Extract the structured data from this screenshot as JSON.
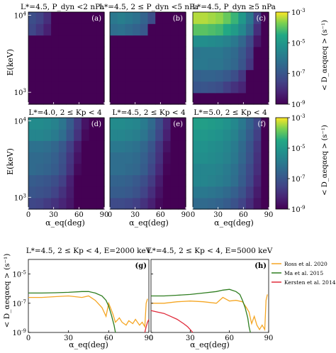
{
  "panel_titles": {
    "a": "L*=4.5, P_dyn <2 nPa",
    "b": "L*=4.5, 2 ≤ P_dyn <5 nPa",
    "c": "L*=4.5, P_dyn ≥5 nPa",
    "d": "L*=4.0, 2 ≤ Kp < 4",
    "e": "L*=4.5, 2 ≤ Kp < 4",
    "f": "L*=5.0, 2 ≤ Kp < 4",
    "g": "L*=4.5, 2 ≤ Kp < 4, E=2000 keV",
    "h": "L*=4.5, 2 ≤ Kp < 4, E=5000 keV"
  },
  "panel_tags": [
    "(a)",
    "(b)",
    "(c)",
    "(d)",
    "(e)",
    "(f)",
    "(g)",
    "(h)"
  ],
  "heatmap_ylabel": "E(keV)",
  "heatmap_yticks": [
    "10",
    "10"
  ],
  "heatmap_ytick_exps": [
    "4",
    "3"
  ],
  "heatmap_xlabel": "α_eq(deg)",
  "heatmap_xticks": [
    "0",
    "30",
    "60",
    "90"
  ],
  "colorbar_label": "< D_αeqαeq > (s⁻¹)",
  "colorbar_ticks": [
    "10",
    "10",
    "10",
    "10"
  ],
  "colorbar_tick_exps": [
    "-3",
    "-5",
    "-7",
    "-9"
  ],
  "line_ylabel": "< D_αeqαeq > (s⁻¹)",
  "line_xlabel": "α_eq(deg)",
  "line_xticks": [
    "0",
    "30",
    "60",
    "90"
  ],
  "line_yticks": [
    "10",
    "10",
    "10"
  ],
  "line_ytick_exps": [
    "-5",
    "-7",
    "-9"
  ],
  "legend": [
    "Ross et al. 2020",
    "Ma et al. 2015",
    "Kersten et al. 2014"
  ],
  "colors": {
    "ross": "#f5a623",
    "ma": "#2e7d1f",
    "kersten": "#e02a3a"
  },
  "chart_data": [
    {
      "type": "heatmap",
      "panel": "a",
      "x_range_deg": [
        0,
        90
      ],
      "y_range_keV": [
        700,
        11000
      ],
      "log10_D_range": [
        -9,
        -3
      ],
      "rows_keV_low_to_high": [
        "low",
        "",
        "",
        "",
        "",
        "",
        "",
        "high"
      ],
      "log10_D": [
        [
          -9,
          -9,
          -9,
          -9,
          -9,
          -9,
          -9,
          -9,
          -9,
          -9
        ],
        [
          -9,
          -9,
          -9,
          -9,
          -9,
          -9,
          -9,
          -9,
          -9,
          -9
        ],
        [
          -9,
          -9,
          -9,
          -9,
          -9,
          -9,
          -9,
          -9,
          -9,
          -9
        ],
        [
          -9,
          -9,
          -9,
          -9,
          -9,
          -9,
          -9,
          -9,
          -9,
          -9
        ],
        [
          -9,
          -9,
          -9,
          -9,
          -9,
          -9,
          -9,
          -9,
          -9,
          -9
        ],
        [
          -9,
          -9,
          -9,
          -9,
          -9,
          -9,
          -9,
          -9,
          -9,
          -9
        ],
        [
          -7.4,
          -7.8,
          -8.3,
          -9,
          -9,
          -9,
          -9,
          -9,
          -9,
          -9
        ],
        [
          -7.2,
          -7.5,
          -8.0,
          -9,
          -9,
          -9,
          -9,
          -9,
          -9,
          -9
        ]
      ]
    },
    {
      "type": "heatmap",
      "panel": "b",
      "x_range_deg": [
        0,
        90
      ],
      "y_range_keV": [
        700,
        11000
      ],
      "log10_D_range": [
        -9,
        -3
      ],
      "log10_D": [
        [
          -9,
          -9,
          -9,
          -9,
          -9,
          -9,
          -9,
          -9,
          -9,
          -9
        ],
        [
          -9,
          -9,
          -9,
          -9,
          -9,
          -9,
          -9,
          -9,
          -9,
          -9
        ],
        [
          -9,
          -9,
          -9,
          -9,
          -9,
          -9,
          -9,
          -9,
          -9,
          -9
        ],
        [
          -9,
          -9,
          -9,
          -9,
          -9,
          -9,
          -9,
          -9,
          -9,
          -9
        ],
        [
          -9,
          -9,
          -9,
          -9,
          -9,
          -9,
          -9,
          -9,
          -9,
          -9
        ],
        [
          -9,
          -9,
          -9,
          -9,
          -9,
          -9,
          -9,
          -9,
          -9,
          -9
        ],
        [
          -6.3,
          -6.2,
          -6.4,
          -6.6,
          -6.9,
          -9,
          -9,
          -9,
          -9,
          -9
        ],
        [
          -6.0,
          -5.8,
          -6.0,
          -6.2,
          -6.6,
          -7.2,
          -9,
          -9,
          -9,
          -9
        ]
      ]
    },
    {
      "type": "heatmap",
      "panel": "c",
      "x_range_deg": [
        0,
        90
      ],
      "y_range_keV": [
        700,
        11000
      ],
      "log10_D_range": [
        -9,
        -3
      ],
      "log10_D": [
        [
          -9,
          -9,
          -9,
          -9,
          -9,
          -9,
          -9,
          -9,
          -9,
          -9
        ],
        [
          -7.0,
          -7.0,
          -7.1,
          -7.2,
          -7.6,
          -7.9,
          -8.2,
          -9,
          -9,
          -9
        ],
        [
          -6.7,
          -6.6,
          -6.6,
          -6.7,
          -6.9,
          -7.2,
          -7.8,
          -9,
          -9,
          -9
        ],
        [
          -6.0,
          -6.0,
          -6.1,
          -6.1,
          -6.3,
          -6.5,
          -7.0,
          -7.8,
          -9,
          -9
        ],
        [
          -6.1,
          -6.0,
          -6.0,
          -6.0,
          -6.2,
          -6.4,
          -6.9,
          -7.6,
          -9,
          -9
        ],
        [
          -5.3,
          -5.3,
          -5.4,
          -5.5,
          -5.7,
          -6.0,
          -6.5,
          -7.3,
          -8.5,
          -9
        ],
        [
          -4.0,
          -4.0,
          -4.1,
          -4.2,
          -4.5,
          -4.9,
          -5.5,
          -6.4,
          -8.0,
          -9
        ],
        [
          -3.4,
          -3.4,
          -3.5,
          -3.6,
          -3.9,
          -4.3,
          -5.0,
          -6.0,
          -7.6,
          -9
        ]
      ]
    },
    {
      "type": "heatmap",
      "panel": "d",
      "x_range_deg": [
        0,
        90
      ],
      "y_range_keV": [
        700,
        11000
      ],
      "log10_D_range": [
        -9,
        -3
      ],
      "log10_D": [
        [
          -7.4,
          -7.5,
          -7.7,
          -7.9,
          -8.2,
          -8.5,
          -9,
          -9,
          -9,
          -9
        ],
        [
          -7.0,
          -7.1,
          -7.2,
          -7.5,
          -7.9,
          -8.4,
          -9,
          -9,
          -9,
          -9
        ],
        [
          -6.8,
          -6.9,
          -7.0,
          -7.2,
          -7.6,
          -8.3,
          -9,
          -9,
          -9,
          -9
        ],
        [
          -6.4,
          -6.5,
          -6.6,
          -6.8,
          -7.2,
          -7.9,
          -8.8,
          -9,
          -9,
          -9
        ],
        [
          -6.4,
          -6.4,
          -6.5,
          -6.7,
          -7.1,
          -7.8,
          -8.6,
          -9,
          -9,
          -9
        ],
        [
          -6.2,
          -6.2,
          -6.3,
          -6.5,
          -6.9,
          -7.6,
          -8.4,
          -9,
          -9,
          -9
        ],
        [
          -5.6,
          -5.6,
          -5.7,
          -5.9,
          -6.3,
          -7.0,
          -7.9,
          -8.8,
          -9,
          -9
        ],
        [
          -5.4,
          -5.4,
          -5.5,
          -5.7,
          -6.1,
          -6.8,
          -7.7,
          -8.6,
          -9,
          -9
        ]
      ]
    },
    {
      "type": "heatmap",
      "panel": "e",
      "x_range_deg": [
        0,
        90
      ],
      "y_range_keV": [
        700,
        11000
      ],
      "log10_D_range": [
        -9,
        -3
      ],
      "log10_D": [
        [
          -7.3,
          -7.3,
          -7.4,
          -7.6,
          -7.9,
          -8.3,
          -8.8,
          -9,
          -9,
          -9
        ],
        [
          -6.8,
          -6.8,
          -6.9,
          -7.1,
          -7.5,
          -8.0,
          -8.6,
          -9,
          -9,
          -9
        ],
        [
          -6.6,
          -6.6,
          -6.7,
          -6.9,
          -7.2,
          -7.7,
          -8.4,
          -9,
          -9,
          -9
        ],
        [
          -6.3,
          -6.3,
          -6.4,
          -6.5,
          -6.8,
          -7.4,
          -8.1,
          -8.9,
          -9,
          -9
        ],
        [
          -6.3,
          -6.3,
          -6.3,
          -6.4,
          -6.7,
          -7.2,
          -7.9,
          -8.8,
          -9,
          -9
        ],
        [
          -6.0,
          -6.0,
          -6.1,
          -6.2,
          -6.5,
          -7.0,
          -7.8,
          -8.6,
          -9,
          -9
        ],
        [
          -5.6,
          -5.6,
          -5.7,
          -5.8,
          -6.1,
          -6.6,
          -7.4,
          -8.3,
          -9,
          -9
        ],
        [
          -5.4,
          -5.4,
          -5.5,
          -5.6,
          -5.9,
          -6.4,
          -7.2,
          -8.1,
          -9,
          -9
        ]
      ]
    },
    {
      "type": "heatmap",
      "panel": "f",
      "x_range_deg": [
        0,
        90
      ],
      "y_range_keV": [
        700,
        11000
      ],
      "log10_D_range": [
        -9,
        -3
      ],
      "log10_D": [
        [
          -6.4,
          -6.4,
          -6.5,
          -6.6,
          -6.8,
          -7.1,
          -7.5,
          -8.0,
          -8.6,
          -9
        ],
        [
          -6.0,
          -6.0,
          -6.1,
          -6.2,
          -6.4,
          -6.7,
          -7.1,
          -7.7,
          -8.4,
          -9
        ],
        [
          -5.6,
          -5.6,
          -5.7,
          -5.8,
          -6.0,
          -6.3,
          -6.8,
          -7.4,
          -8.2,
          -9
        ],
        [
          -5.6,
          -5.6,
          -5.6,
          -5.7,
          -5.9,
          -6.2,
          -6.7,
          -7.3,
          -8.0,
          -9
        ],
        [
          -5.3,
          -5.3,
          -5.4,
          -5.5,
          -5.7,
          -6.0,
          -6.5,
          -7.1,
          -7.9,
          -9
        ],
        [
          -5.2,
          -5.2,
          -5.3,
          -5.4,
          -5.6,
          -5.9,
          -6.4,
          -7.0,
          -7.8,
          -9
        ],
        [
          -5.0,
          -5.0,
          -5.1,
          -5.2,
          -5.4,
          -5.7,
          -6.2,
          -6.8,
          -7.6,
          -9
        ],
        [
          -4.8,
          -4.8,
          -4.9,
          -5.0,
          -5.2,
          -5.5,
          -6.0,
          -6.6,
          -7.4,
          -9
        ]
      ]
    },
    {
      "type": "line",
      "panel": "g",
      "xlim": [
        0,
        90
      ],
      "ylim_log10": [
        -9,
        -4
      ],
      "series": [
        {
          "name": "Ross et al. 2020",
          "x": [
            0,
            10,
            20,
            30,
            40,
            45,
            50,
            55,
            58,
            60,
            63,
            65,
            68,
            70,
            73,
            75,
            78,
            80,
            83,
            85,
            87,
            88,
            89
          ],
          "log10_y": [
            -6.6,
            -6.6,
            -6.55,
            -6.5,
            -6.6,
            -6.5,
            -6.8,
            -7.3,
            -7.9,
            -7.0,
            -7.7,
            -8.3,
            -8.0,
            -8.3,
            -8.5,
            -8.2,
            -8.4,
            -8.1,
            -8.5,
            -8.3,
            -8.6,
            -7.0,
            -6.7
          ]
        },
        {
          "name": "Ma et al. 2015",
          "x": [
            0,
            10,
            20,
            30,
            40,
            45,
            50,
            55,
            58,
            60,
            62,
            64,
            65
          ],
          "log10_y": [
            -6.3,
            -6.3,
            -6.28,
            -6.25,
            -6.2,
            -6.2,
            -6.3,
            -6.5,
            -6.8,
            -7.2,
            -7.8,
            -8.5,
            -9.0
          ]
        },
        {
          "name": "Kersten et al. 2014",
          "x": [
            87,
            88,
            89,
            90
          ],
          "log10_y": [
            -9.0,
            -8.6,
            -8.3,
            -8.1
          ]
        }
      ]
    },
    {
      "type": "line",
      "panel": "h",
      "xlim": [
        0,
        90
      ],
      "ylim_log10": [
        -9,
        -4
      ],
      "series": [
        {
          "name": "Ross et al. 2020",
          "x": [
            0,
            10,
            20,
            30,
            40,
            50,
            55,
            60,
            65,
            70,
            73,
            75,
            77,
            79,
            81,
            83,
            85,
            87,
            88,
            89
          ],
          "log10_y": [
            -7.0,
            -7.0,
            -6.9,
            -6.85,
            -6.9,
            -7.0,
            -6.6,
            -6.85,
            -6.8,
            -6.9,
            -7.3,
            -7.6,
            -8.4,
            -7.9,
            -8.5,
            -8.8,
            -8.5,
            -8.8,
            -6.8,
            -6.4
          ]
        },
        {
          "name": "Ma et al. 2015",
          "x": [
            0,
            10,
            20,
            30,
            40,
            50,
            55,
            60,
            65,
            68,
            70,
            72,
            74,
            75,
            76
          ],
          "log10_y": [
            -6.5,
            -6.5,
            -6.45,
            -6.4,
            -6.3,
            -6.2,
            -6.1,
            -6.05,
            -6.2,
            -6.4,
            -6.8,
            -7.3,
            -8.0,
            -8.6,
            -9.0
          ]
        },
        {
          "name": "Kersten et al. 2014",
          "x": [
            0,
            5,
            10,
            15,
            20,
            25,
            28,
            30,
            32
          ],
          "log10_y": [
            -7.5,
            -7.6,
            -7.7,
            -7.9,
            -8.1,
            -8.4,
            -8.6,
            -8.8,
            -9.0
          ]
        }
      ]
    }
  ]
}
